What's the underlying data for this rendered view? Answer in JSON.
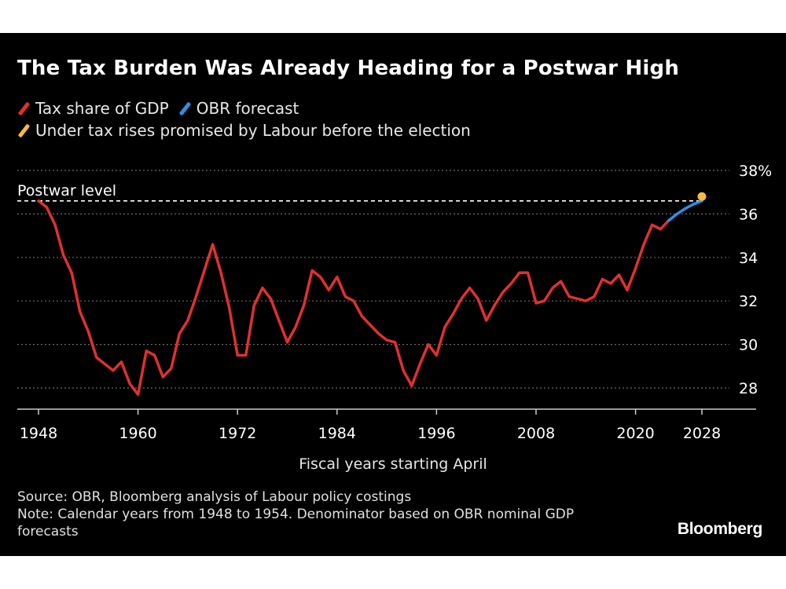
{
  "chart_data": {
    "type": "line",
    "title": "The Tax Burden Was Already Heading for a Postwar High",
    "xlabel": "Fiscal years starting April",
    "ylabel": "",
    "xlim": [
      1948,
      2028
    ],
    "ylim": [
      27,
      38
    ],
    "x_ticks": [
      1948,
      1960,
      1972,
      1984,
      1996,
      2008,
      2020,
      2028
    ],
    "y_ticks": [
      {
        "value": 28,
        "label": "28"
      },
      {
        "value": 30,
        "label": "30"
      },
      {
        "value": 32,
        "label": "32"
      },
      {
        "value": 34,
        "label": "34"
      },
      {
        "value": 36,
        "label": "36"
      },
      {
        "value": 38,
        "label": "38%"
      }
    ],
    "grid": true,
    "legend": [
      {
        "label": "Tax share of GDP",
        "color": "#e03030"
      },
      {
        "label": "OBR forecast",
        "color": "#2f8fe6"
      },
      {
        "label": "Under tax rises promised by Labour before the election",
        "color": "#f5b945"
      }
    ],
    "reference_line": {
      "label": "Postwar level",
      "value": 36.6
    },
    "series": [
      {
        "name": "Tax share of GDP",
        "color": "#e03030",
        "x": [
          1948,
          1949,
          1950,
          1951,
          1952,
          1953,
          1954,
          1955,
          1956,
          1957,
          1958,
          1959,
          1960,
          1961,
          1962,
          1963,
          1964,
          1965,
          1966,
          1967,
          1968,
          1969,
          1970,
          1971,
          1972,
          1973,
          1974,
          1975,
          1976,
          1977,
          1978,
          1979,
          1980,
          1981,
          1982,
          1983,
          1984,
          1985,
          1986,
          1987,
          1988,
          1989,
          1990,
          1991,
          1992,
          1993,
          1994,
          1995,
          1996,
          1997,
          1998,
          1999,
          2000,
          2001,
          2002,
          2003,
          2004,
          2005,
          2006,
          2007,
          2008,
          2009,
          2010,
          2011,
          2012,
          2013,
          2014,
          2015,
          2016,
          2017,
          2018,
          2019,
          2020,
          2021,
          2022,
          2023,
          2024
        ],
        "values": [
          36.6,
          36.3,
          35.5,
          34.1,
          33.3,
          31.5,
          30.6,
          29.4,
          29.1,
          28.8,
          29.2,
          28.2,
          27.7,
          29.7,
          29.5,
          28.5,
          28.9,
          30.5,
          31.1,
          32.2,
          33.4,
          34.6,
          33.3,
          31.7,
          29.5,
          29.5,
          31.8,
          32.6,
          32.1,
          31.1,
          30.1,
          30.8,
          31.8,
          33.4,
          33.1,
          32.5,
          33.1,
          32.2,
          32.0,
          31.3,
          30.9,
          30.5,
          30.2,
          30.1,
          28.8,
          28.1,
          29.1,
          30.0,
          29.5,
          30.8,
          31.4,
          32.1,
          32.6,
          32.1,
          31.1,
          31.8,
          32.4,
          32.8,
          33.3,
          33.3,
          31.9,
          32.0,
          32.6,
          32.9,
          32.2,
          32.1,
          32.0,
          32.2,
          33.0,
          32.8,
          33.2,
          32.5,
          33.5,
          34.6,
          35.5,
          35.3,
          35.7
        ]
      },
      {
        "name": "OBR forecast",
        "color": "#2f8fe6",
        "x": [
          2024,
          2025,
          2026,
          2027,
          2028
        ],
        "values": [
          35.7,
          36.0,
          36.25,
          36.45,
          36.6
        ]
      },
      {
        "name": "Under tax rises promised by Labour before the election",
        "color": "#f5b945",
        "x": [
          2028
        ],
        "values": [
          36.8
        ]
      }
    ]
  },
  "footer": {
    "source": "Source: OBR, Bloomberg analysis of Labour policy costings",
    "note_line1": "Note: Calendar years from 1948 to 1954. Denominator based on OBR nominal GDP",
    "note_line2": "forecasts",
    "brand": "Bloomberg"
  },
  "colors": {
    "background": "#000000",
    "grid": "#6b6b6b",
    "axis": "#cccccc",
    "text": "#ffffff"
  }
}
